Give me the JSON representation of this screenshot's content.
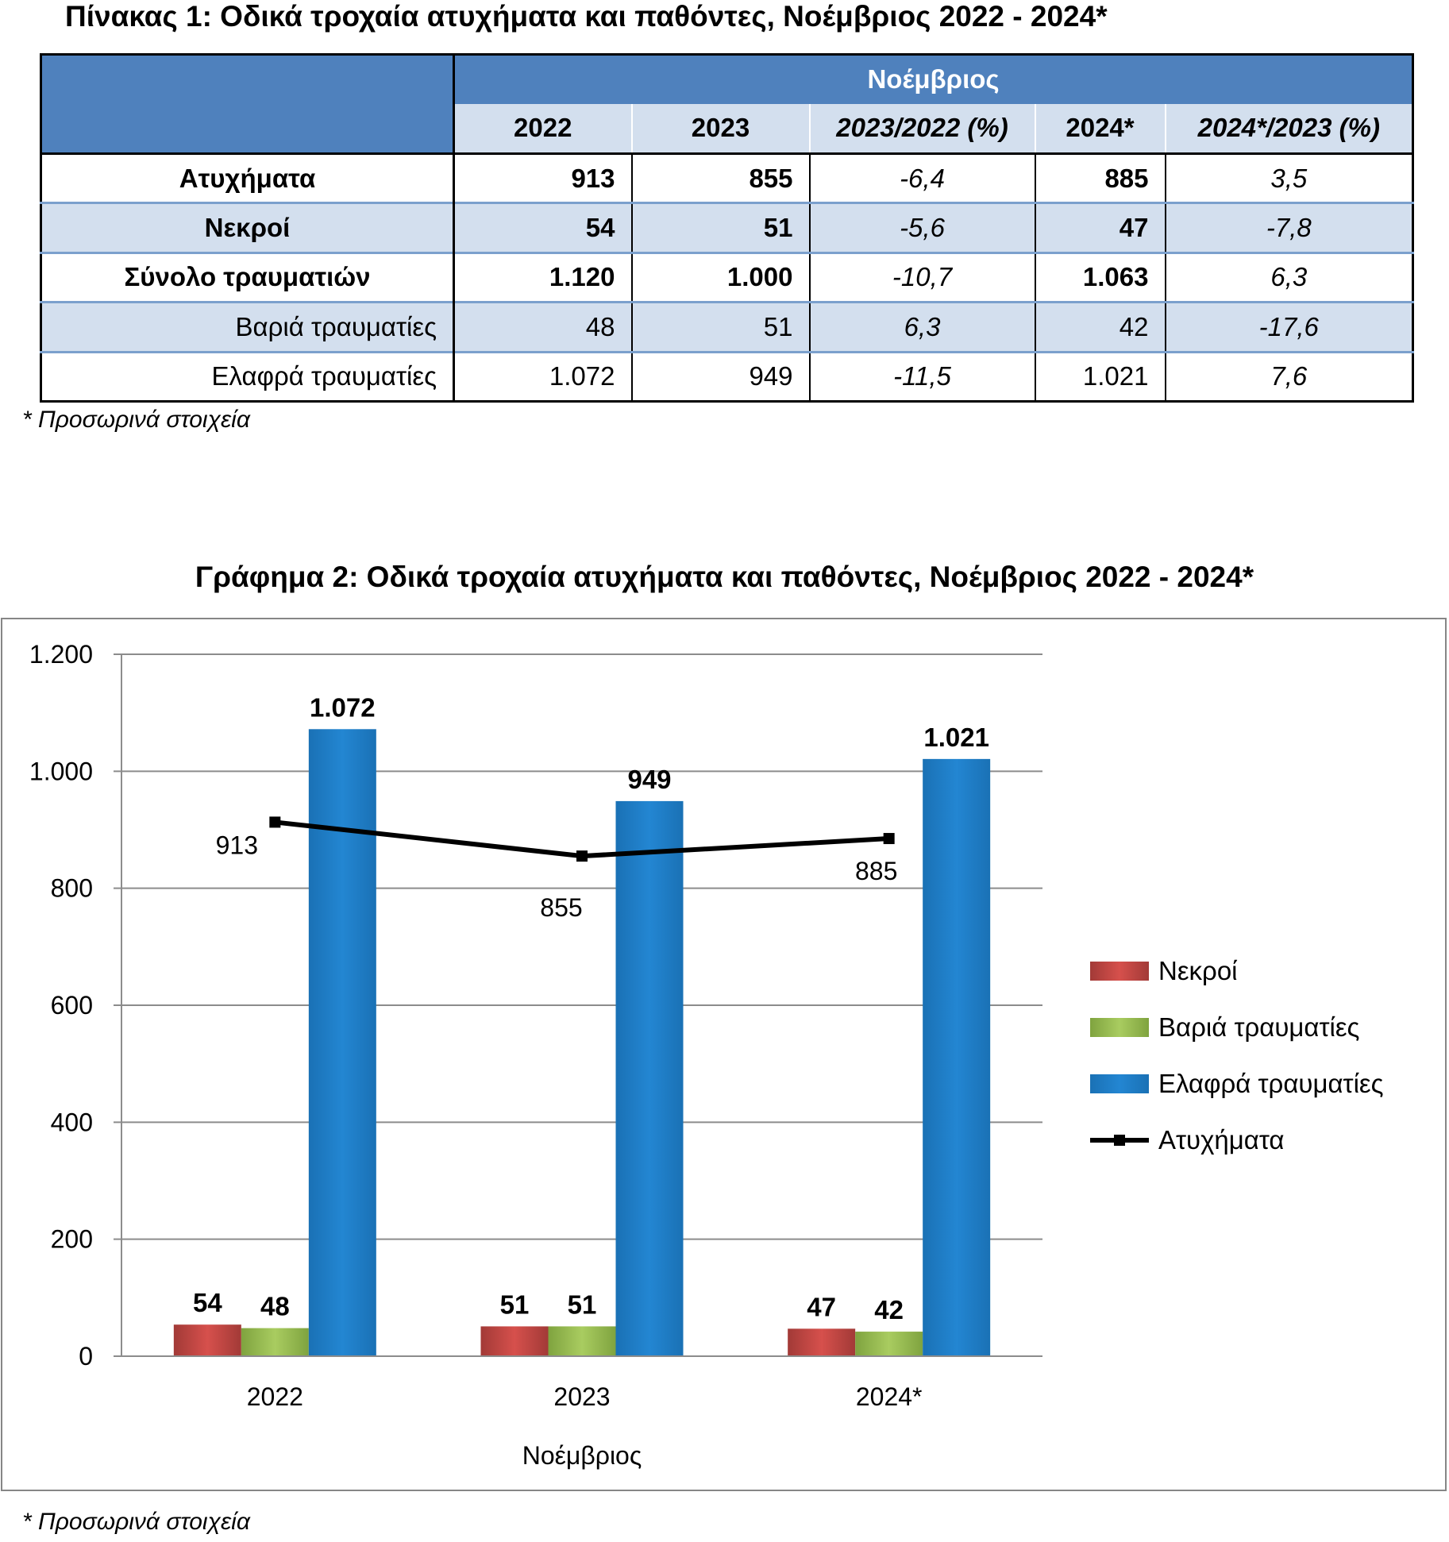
{
  "table": {
    "title": "Πίνακας 1: Οδικά τροχαία ατυχήματα και παθόντες, Νοέμβριος 2022 - 2024*",
    "group_header": "Νοέμβριος",
    "columns": [
      "2022",
      "2023",
      "2023/2022 (%)",
      "2024*",
      "2024*/2023 (%)"
    ],
    "rows": [
      {
        "label": "Ατυχήματα",
        "values": [
          "913",
          "855",
          "-6,4",
          "885",
          "3,5"
        ]
      },
      {
        "label": "Νεκροί",
        "values": [
          "54",
          "51",
          "-5,6",
          "47",
          "-7,8"
        ]
      },
      {
        "label": "Σύνολο τραυματιών",
        "values": [
          "1.120",
          "1.000",
          "-10,7",
          "1.063",
          "6,3"
        ]
      },
      {
        "label": "Βαριά τραυματίες",
        "values": [
          "48",
          "51",
          "6,3",
          "42",
          "-17,6"
        ]
      },
      {
        "label": "Ελαφρά τραυματίες",
        "values": [
          "1.072",
          "949",
          "-11,5",
          "1.021",
          "7,6"
        ]
      }
    ],
    "footnote": "* Προσωρινά στοιχεία"
  },
  "chart_footnote": "* Προσωρινά στοιχεία",
  "chart_data": {
    "type": "bar",
    "title": "Γράφημα 2: Οδικά τροχαία ατυχήματα και παθόντες, Νοέμβριος 2022 - 2024*",
    "xlabel": "Νοέμβριος",
    "ylabel": "",
    "categories": [
      "2022",
      "2023",
      "2024*"
    ],
    "ylim": [
      0,
      1200
    ],
    "yticks": [
      0,
      200,
      400,
      600,
      800,
      1000,
      1200
    ],
    "ytick_labels": [
      "0",
      "200",
      "400",
      "600",
      "800",
      "1.000",
      "1.200"
    ],
    "grid": true,
    "legend_position": "right",
    "series": [
      {
        "name": "Νεκροί",
        "kind": "bar",
        "color": "#c0504d",
        "values": [
          54,
          51,
          47
        ],
        "labels": [
          "54",
          "51",
          "47"
        ]
      },
      {
        "name": "Βαριά τραυματίες",
        "kind": "bar",
        "color": "#9bbb59",
        "values": [
          48,
          51,
          42
        ],
        "labels": [
          "48",
          "51",
          "42"
        ]
      },
      {
        "name": "Ελαφρά τραυματίες",
        "kind": "bar",
        "color": "#1f7fc8",
        "values": [
          1072,
          949,
          1021
        ],
        "labels": [
          "1.072",
          "949",
          "1.021"
        ]
      },
      {
        "name": "Ατυχήματα",
        "kind": "line",
        "color": "#000000",
        "values": [
          913,
          855,
          885
        ],
        "labels": [
          "913",
          "855",
          "885"
        ]
      }
    ]
  }
}
